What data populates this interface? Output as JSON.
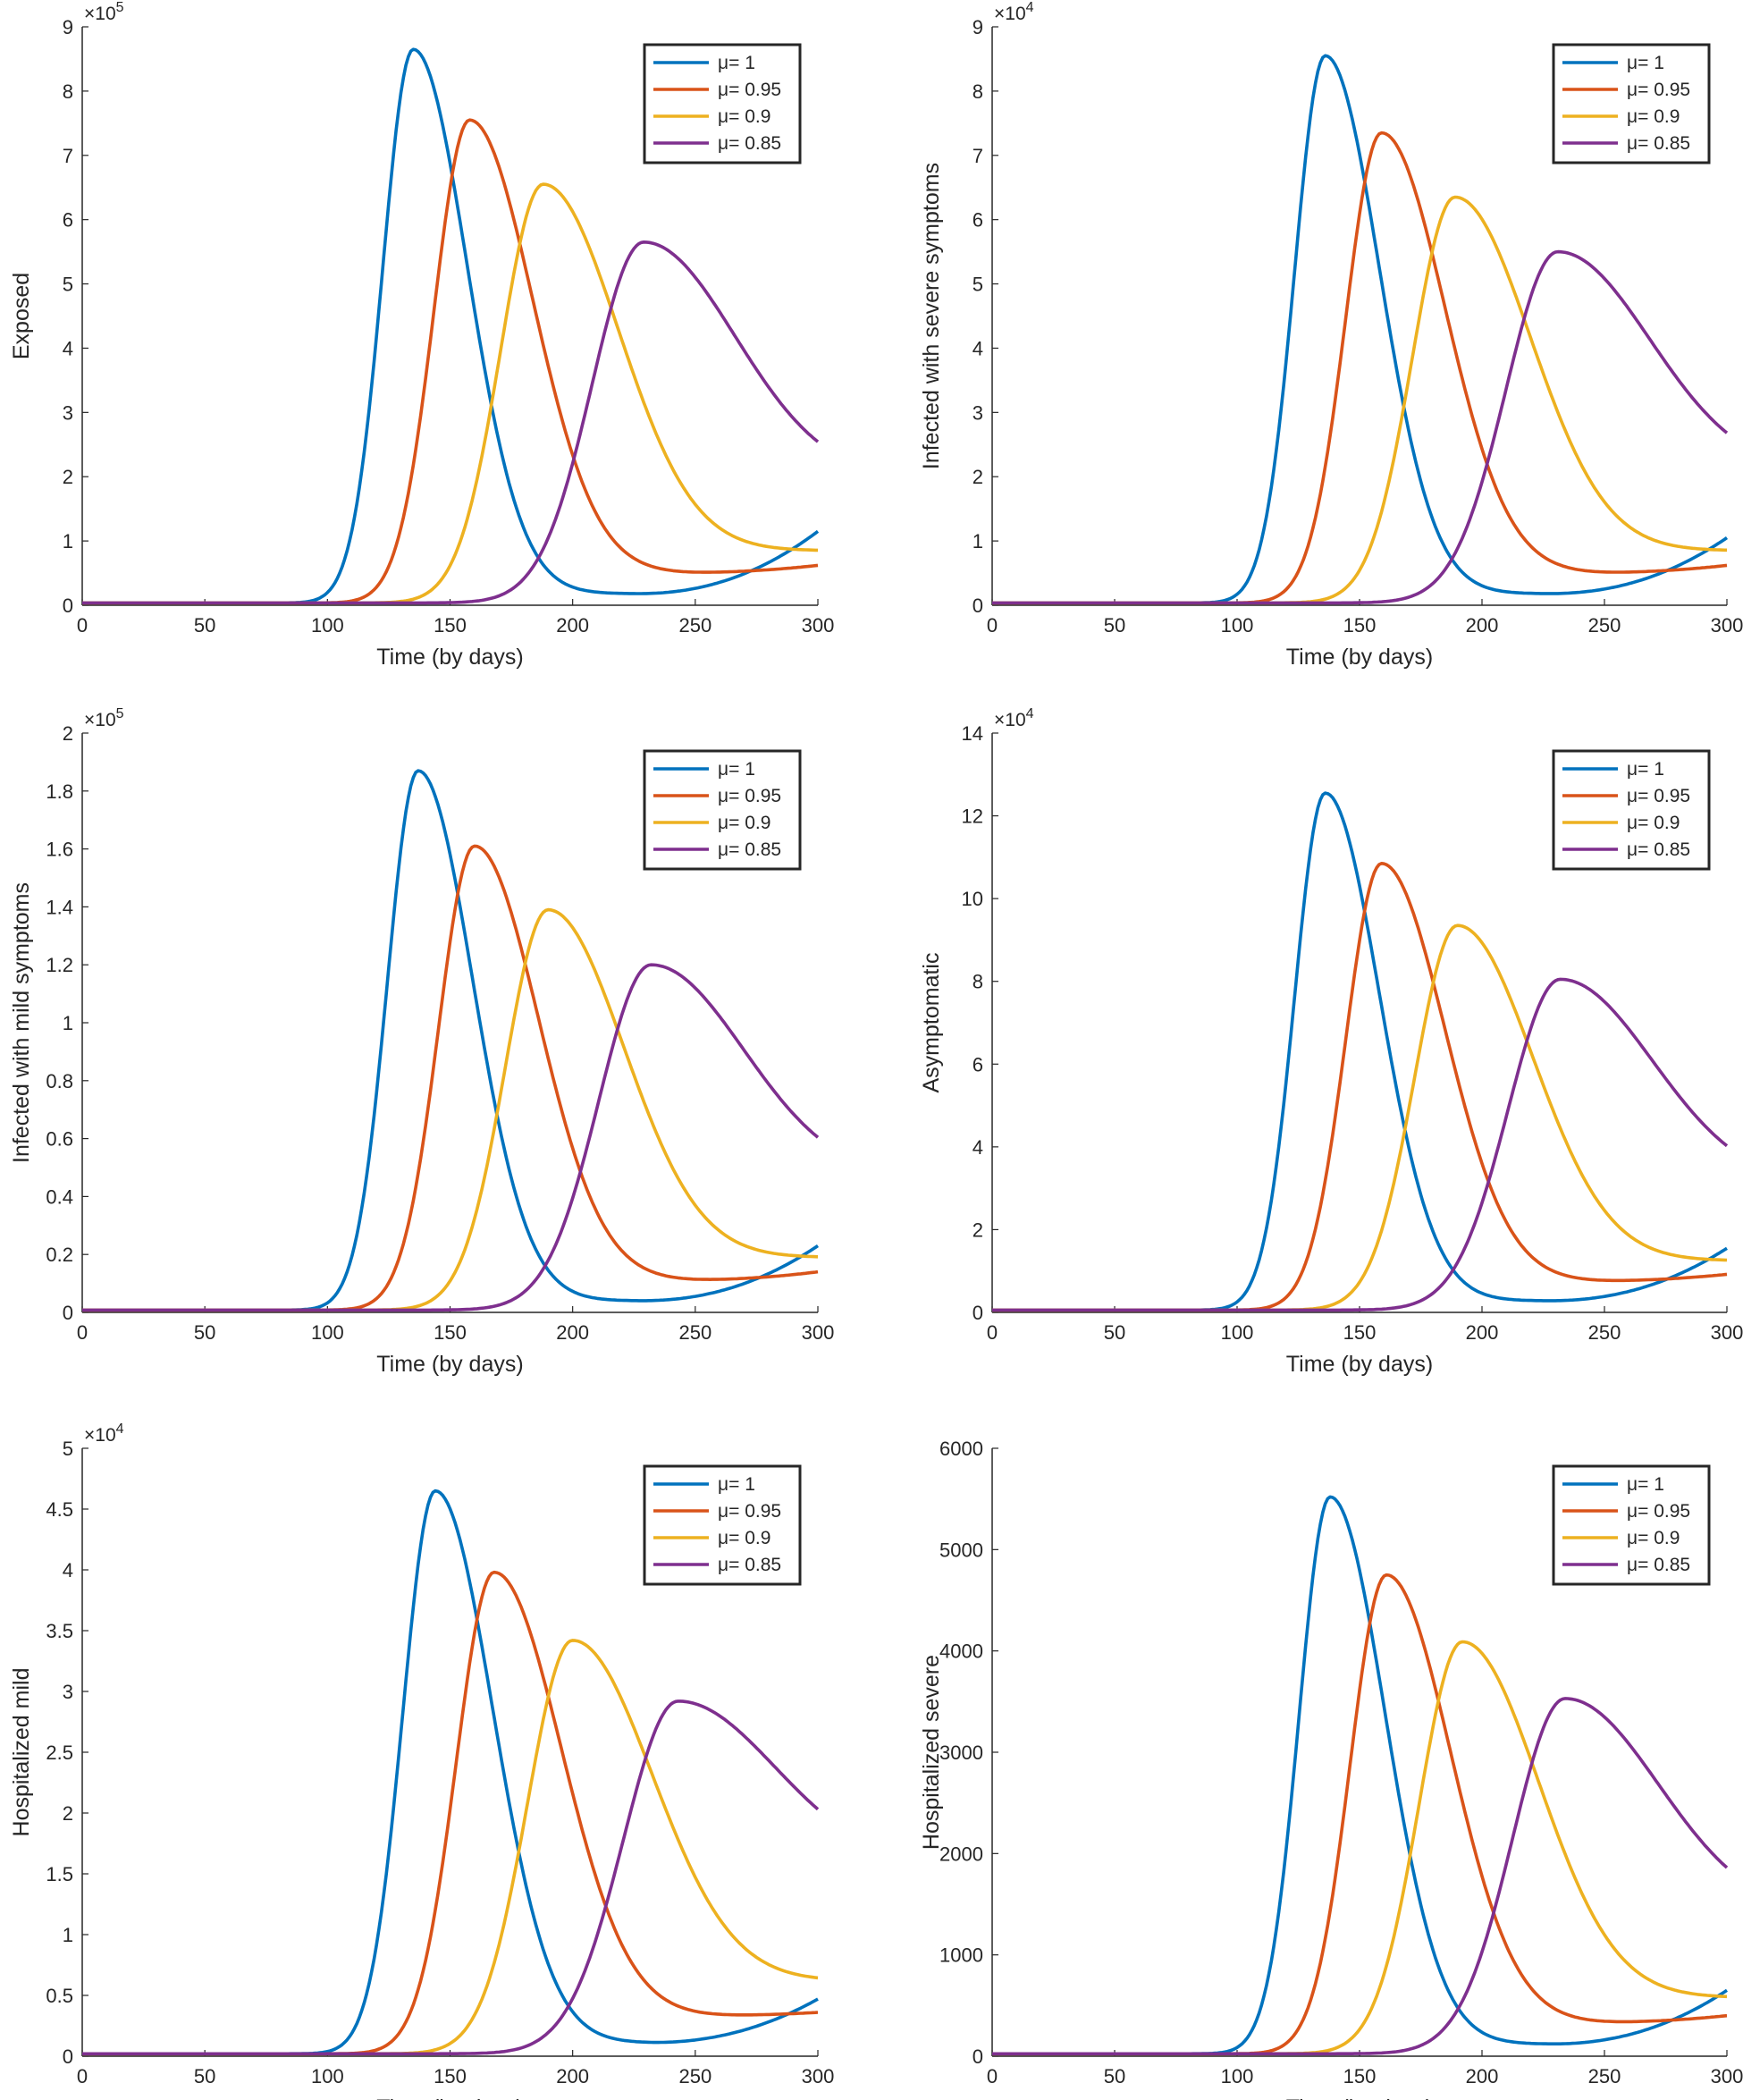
{
  "figure": {
    "description_free": true
  },
  "series_style": {
    "colors": [
      "#0072BD",
      "#D95319",
      "#EDB120",
      "#7E2F8E"
    ],
    "legend_labels": [
      "μ= 1",
      "μ= 0.95",
      "μ= 0.9",
      "μ= 0.85"
    ]
  },
  "chart_data": [
    {
      "type": "line",
      "title": "",
      "xlabel": "Time (by days)",
      "ylabel": "Exposed",
      "xlim": [
        0,
        300
      ],
      "ylim": [
        0,
        9
      ],
      "xticks": [
        "0",
        "50",
        "100",
        "150",
        "200",
        "250",
        "300"
      ],
      "yticks": [
        "0",
        "1",
        "2",
        "3",
        "4",
        "5",
        "6",
        "7",
        "8",
        "9"
      ],
      "multiplier": {
        "base": "×10",
        "exp": "5"
      },
      "legend_position": "top-right",
      "series": [
        {
          "name": "μ= 1",
          "peak_x": 135,
          "peak_y": 8.65,
          "end_y": 1.15,
          "min_y": 0.18
        },
        {
          "name": "μ= 0.95",
          "peak_x": 158,
          "peak_y": 7.55,
          "end_y": 0.62,
          "min_y": 0.5
        },
        {
          "name": "μ= 0.9",
          "peak_x": 188,
          "peak_y": 6.55,
          "end_y": 0.85,
          "min_y": 0.85
        },
        {
          "name": "μ= 0.85",
          "peak_x": 229,
          "peak_y": 5.65,
          "end_y": 1.95,
          "min_y": 1.95
        }
      ]
    },
    {
      "type": "line",
      "title": "",
      "xlabel": "Time (by days)",
      "ylabel": "Infected with severe symptoms",
      "xlim": [
        0,
        300
      ],
      "ylim": [
        0,
        9
      ],
      "xticks": [
        "0",
        "50",
        "100",
        "150",
        "200",
        "250",
        "300"
      ],
      "yticks": [
        "0",
        "1",
        "2",
        "3",
        "4",
        "5",
        "6",
        "7",
        "8",
        "9"
      ],
      "multiplier": {
        "base": "×10",
        "exp": "4"
      },
      "legend_position": "top-right",
      "series": [
        {
          "name": "μ= 1",
          "peak_x": 136,
          "peak_y": 8.55,
          "end_y": 1.05,
          "min_y": 0.18
        },
        {
          "name": "μ= 0.95",
          "peak_x": 159,
          "peak_y": 7.35,
          "end_y": 0.62,
          "min_y": 0.5
        },
        {
          "name": "μ= 0.9",
          "peak_x": 189,
          "peak_y": 6.35,
          "end_y": 0.85,
          "min_y": 0.85
        },
        {
          "name": "μ= 0.85",
          "peak_x": 231,
          "peak_y": 5.5,
          "end_y": 2.05,
          "min_y": 2.05
        }
      ]
    },
    {
      "type": "line",
      "title": "",
      "xlabel": "Time (by days)",
      "ylabel": "Infected with mild symptoms",
      "xlim": [
        0,
        300
      ],
      "ylim": [
        0,
        2
      ],
      "xticks": [
        "0",
        "50",
        "100",
        "150",
        "200",
        "250",
        "300"
      ],
      "yticks": [
        "0",
        "0.2",
        "0.4",
        "0.6",
        "0.8",
        "1",
        "1.2",
        "1.4",
        "1.6",
        "1.8",
        "2"
      ],
      "multiplier": {
        "base": "×10",
        "exp": "5"
      },
      "legend_position": "top-right",
      "series": [
        {
          "name": "μ= 1",
          "peak_x": 137,
          "peak_y": 1.87,
          "end_y": 0.23,
          "min_y": 0.04
        },
        {
          "name": "μ= 0.95",
          "peak_x": 160,
          "peak_y": 1.61,
          "end_y": 0.14,
          "min_y": 0.11
        },
        {
          "name": "μ= 0.9",
          "peak_x": 190,
          "peak_y": 1.39,
          "end_y": 0.19,
          "min_y": 0.19
        },
        {
          "name": "μ= 0.85",
          "peak_x": 232,
          "peak_y": 1.2,
          "end_y": 0.46,
          "min_y": 0.46
        }
      ]
    },
    {
      "type": "line",
      "title": "",
      "xlabel": "Time (by days)",
      "ylabel": "Asymptomatic",
      "xlim": [
        0,
        300
      ],
      "ylim": [
        0,
        14
      ],
      "xticks": [
        "0",
        "50",
        "100",
        "150",
        "200",
        "250",
        "300"
      ],
      "yticks": [
        "0",
        "2",
        "4",
        "6",
        "8",
        "10",
        "12",
        "14"
      ],
      "multiplier": {
        "base": "×10",
        "exp": "4"
      },
      "legend_position": "top-right",
      "series": [
        {
          "name": "μ= 1",
          "peak_x": 136,
          "peak_y": 12.55,
          "end_y": 1.55,
          "min_y": 0.28
        },
        {
          "name": "μ= 0.95",
          "peak_x": 159,
          "peak_y": 10.85,
          "end_y": 0.92,
          "min_y": 0.75
        },
        {
          "name": "μ= 0.9",
          "peak_x": 190,
          "peak_y": 9.35,
          "end_y": 1.25,
          "min_y": 1.25
        },
        {
          "name": "μ= 0.85",
          "peak_x": 232,
          "peak_y": 8.05,
          "end_y": 3.05,
          "min_y": 3.05
        }
      ]
    },
    {
      "type": "line",
      "title": "",
      "xlabel": "Time (by days)",
      "ylabel": "Hospitalized mild",
      "xlim": [
        0,
        300
      ],
      "ylim": [
        0,
        5
      ],
      "xticks": [
        "0",
        "50",
        "100",
        "150",
        "200",
        "250",
        "300"
      ],
      "yticks": [
        "0",
        "0.5",
        "1",
        "1.5",
        "2",
        "2.5",
        "3",
        "3.5",
        "4",
        "4.5",
        "5"
      ],
      "multiplier": {
        "base": "×10",
        "exp": "4"
      },
      "legend_position": "top-right",
      "series": [
        {
          "name": "μ= 1",
          "peak_x": 144,
          "peak_y": 4.65,
          "end_y": 0.47,
          "min_y": 0.11
        },
        {
          "name": "μ= 0.95",
          "peak_x": 168,
          "peak_y": 3.98,
          "end_y": 0.36,
          "min_y": 0.33
        },
        {
          "name": "μ= 0.9",
          "peak_x": 200,
          "peak_y": 3.42,
          "end_y": 0.62,
          "min_y": 0.62
        },
        {
          "name": "μ= 0.85",
          "peak_x": 243,
          "peak_y": 2.92,
          "end_y": 1.55,
          "min_y": 1.55
        }
      ]
    },
    {
      "type": "line",
      "title": "",
      "xlabel": "Time (by days)",
      "ylabel": "Hospitalized severe",
      "xlim": [
        0,
        300
      ],
      "ylim": [
        0,
        6000
      ],
      "xticks": [
        "0",
        "50",
        "100",
        "150",
        "200",
        "250",
        "300"
      ],
      "yticks": [
        "0",
        "1000",
        "2000",
        "3000",
        "4000",
        "5000",
        "6000"
      ],
      "multiplier": null,
      "legend_position": "top-right",
      "series": [
        {
          "name": "μ= 1",
          "peak_x": 138,
          "peak_y": 5520,
          "end_y": 650,
          "min_y": 120
        },
        {
          "name": "μ= 0.95",
          "peak_x": 161,
          "peak_y": 4750,
          "end_y": 400,
          "min_y": 330
        },
        {
          "name": "μ= 0.9",
          "peak_x": 192,
          "peak_y": 4090,
          "end_y": 580,
          "min_y": 580
        },
        {
          "name": "μ= 0.85",
          "peak_x": 234,
          "peak_y": 3530,
          "end_y": 1390,
          "min_y": 1390
        }
      ]
    }
  ]
}
